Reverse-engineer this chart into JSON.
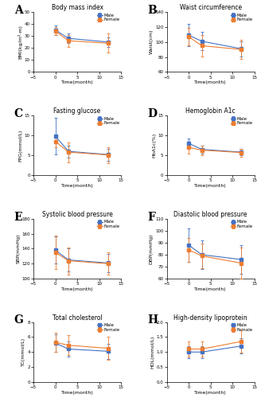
{
  "time_points": [
    0,
    3,
    12
  ],
  "panels": [
    {
      "label": "A",
      "title": "Body mass index",
      "ylabel": "BMI(kg/m²·m)",
      "ylim": [
        0,
        50
      ],
      "yticks": [
        0,
        10,
        20,
        30,
        40,
        50
      ],
      "male_mean": [
        35,
        28,
        25
      ],
      "male_err": [
        4,
        4,
        4
      ],
      "female_mean": [
        34,
        26,
        24
      ],
      "female_err": [
        3.5,
        5,
        8
      ]
    },
    {
      "label": "B",
      "title": "Waist circumference",
      "ylabel": "Waist(cm)",
      "ylim": [
        60,
        140
      ],
      "yticks": [
        60,
        80,
        100,
        120,
        140
      ],
      "male_mean": [
        109,
        101,
        91
      ],
      "male_err": [
        15,
        12,
        10
      ],
      "female_mean": [
        107,
        95,
        90
      ],
      "female_err": [
        12,
        14,
        13
      ]
    },
    {
      "label": "C",
      "title": "Fasting glucose",
      "ylabel": "FPG(mmol/L)",
      "ylim": [
        0,
        15
      ],
      "yticks": [
        0,
        5,
        10,
        15
      ],
      "male_mean": [
        9.8,
        6.0,
        5.2
      ],
      "male_err": [
        4.5,
        1.5,
        1.5
      ],
      "female_mean": [
        8.5,
        5.8,
        5.1
      ],
      "female_err": [
        1.5,
        2.5,
        2.0
      ]
    },
    {
      "label": "D",
      "title": "Hemoglobin A1c",
      "ylabel": "HbA1c(%)",
      "ylim": [
        0,
        15
      ],
      "yticks": [
        0,
        5,
        10,
        15
      ],
      "male_mean": [
        8.0,
        6.5,
        5.8
      ],
      "male_err": [
        1.2,
        1.0,
        0.8
      ],
      "female_mean": [
        7.0,
        6.3,
        5.7
      ],
      "female_err": [
        1.5,
        1.2,
        1.0
      ]
    },
    {
      "label": "E",
      "title": "Systolic blood pressure",
      "ylabel": "SBP(mmHg)",
      "ylim": [
        100,
        180
      ],
      "yticks": [
        100,
        120,
        140,
        160,
        180
      ],
      "male_mean": [
        138,
        125,
        121
      ],
      "male_err": [
        18,
        15,
        12
      ],
      "female_mean": [
        135,
        124,
        120
      ],
      "female_err": [
        22,
        18,
        15
      ]
    },
    {
      "label": "F",
      "title": "Diastolic blood pressure",
      "ylabel": "DBP(mmHg)",
      "ylim": [
        60,
        110
      ],
      "yticks": [
        60,
        70,
        80,
        90,
        100,
        110
      ],
      "male_mean": [
        88,
        80,
        76
      ],
      "male_err": [
        14,
        12,
        12
      ],
      "female_mean": [
        84,
        79,
        73
      ],
      "female_err": [
        10,
        10,
        13
      ]
    },
    {
      "label": "G",
      "title": "Total cholesterol",
      "ylabel": "TC(mmol/L)",
      "ylim": [
        0,
        8
      ],
      "yticks": [
        0,
        2,
        4,
        6,
        8
      ],
      "male_mean": [
        5.2,
        4.4,
        4.1
      ],
      "male_err": [
        1.2,
        1.0,
        1.0
      ],
      "female_mean": [
        5.3,
        4.9,
        4.5
      ],
      "female_err": [
        1.3,
        1.3,
        1.5
      ]
    },
    {
      "label": "H",
      "title": "High-density lipoprotein",
      "ylabel": "HDL(mmol/L)",
      "ylim": [
        0.0,
        2.0
      ],
      "yticks": [
        0.0,
        0.5,
        1.0,
        1.5,
        2.0
      ],
      "male_mean": [
        1.0,
        1.0,
        1.2
      ],
      "male_err": [
        0.2,
        0.2,
        0.25
      ],
      "female_mean": [
        1.1,
        1.1,
        1.35
      ],
      "female_err": [
        0.25,
        0.25,
        0.38
      ]
    }
  ],
  "male_color": "#4472C4",
  "female_color": "#ED7D31",
  "xlim": [
    -5,
    15
  ],
  "xticks": [
    -5,
    0,
    5,
    10,
    15
  ],
  "xlabel": "Time(month)"
}
